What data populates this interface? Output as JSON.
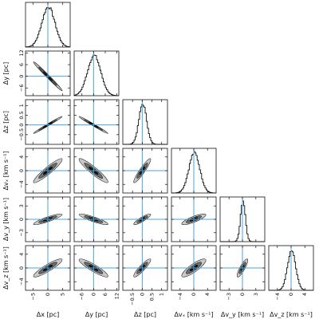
{
  "chart_data": {
    "type": "corner",
    "parameters": [
      {
        "name": "x",
        "label": "Δx [pc]",
        "ticks": [
          -5,
          0,
          5
        ],
        "tick_labels": [
          "−5",
          "0",
          "5"
        ],
        "range": [
          -7.5,
          7.5
        ],
        "peak": 0,
        "width": 2.2
      },
      {
        "name": "y",
        "label": "Δy [pc]",
        "ticks": [
          -6,
          0,
          6,
          12
        ],
        "tick_labels": [
          "−6",
          "0",
          "6",
          "12"
        ],
        "range": [
          -10,
          13
        ],
        "peak": 0,
        "width": 3.4
      },
      {
        "name": "z",
        "label": "Δz [pc]",
        "ticks": [
          -0.5,
          0,
          0.5,
          1
        ],
        "tick_labels": [
          "−0.5",
          "0",
          "0.5",
          "1"
        ],
        "range": [
          -1,
          1.3
        ],
        "peak": 0,
        "width": 0.2
      },
      {
        "name": "vx",
        "label": "Δvₓ [km s⁻¹]",
        "ticks": [
          -4,
          0,
          4
        ],
        "tick_labels": [
          "−4",
          "0",
          "4"
        ],
        "range": [
          -6.5,
          6.5
        ],
        "peak": 0,
        "width": 1.6
      },
      {
        "name": "vy",
        "label": "Δv_y [km s⁻¹]",
        "ticks": [
          -3,
          0,
          3
        ],
        "tick_labels": [
          "−3",
          "0",
          "3"
        ],
        "range": [
          -5,
          5
        ],
        "peak": 0,
        "width": 0.55
      },
      {
        "name": "vz",
        "label": "Δv_z [km s⁻¹]",
        "ticks": [
          -4,
          0,
          4
        ],
        "tick_labels": [
          "−4",
          "0",
          "4"
        ],
        "range": [
          -6.5,
          6.5
        ],
        "peak": 0,
        "width": 1.2
      }
    ],
    "truth_values": [
      0,
      0,
      0,
      0,
      0,
      0
    ],
    "correlations": [
      {
        "row": 1,
        "col": 0,
        "rho": -0.99
      },
      {
        "row": 2,
        "col": 0,
        "rho": 0.99
      },
      {
        "row": 2,
        "col": 1,
        "rho": -0.99
      },
      {
        "row": 3,
        "col": 0,
        "rho": 0.93
      },
      {
        "row": 3,
        "col": 1,
        "rho": -0.93
      },
      {
        "row": 3,
        "col": 2,
        "rho": 0.93
      },
      {
        "row": 4,
        "col": 0,
        "rho": 0.88
      },
      {
        "row": 4,
        "col": 1,
        "rho": -0.88
      },
      {
        "row": 4,
        "col": 2,
        "rho": 0.88
      },
      {
        "row": 4,
        "col": 3,
        "rho": 0.82
      },
      {
        "row": 5,
        "col": 0,
        "rho": 0.9
      },
      {
        "row": 5,
        "col": 1,
        "rho": -0.9
      },
      {
        "row": 5,
        "col": 2,
        "rho": 0.9
      },
      {
        "row": 5,
        "col": 3,
        "rho": 0.85
      },
      {
        "row": 5,
        "col": 4,
        "rho": 0.85
      }
    ],
    "grid": false,
    "colors": {
      "truth_line": "#4aa3df",
      "contour_outer_fill": "#c9c9c9",
      "contour_mid_fill": "#6e6e6e",
      "contour_inner_fill": "#111111",
      "histogram": "#111111",
      "frame": "#111111"
    }
  }
}
